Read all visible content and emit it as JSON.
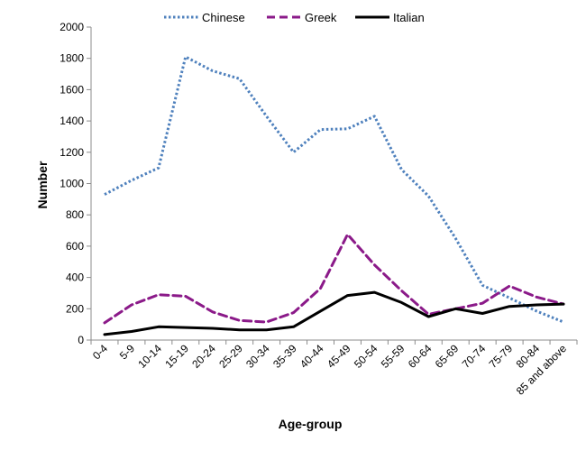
{
  "chart_data": {
    "type": "line",
    "xlabel": "Age-group",
    "ylabel": "Number",
    "ylim": [
      0,
      2000
    ],
    "yticks": [
      0,
      200,
      400,
      600,
      800,
      1000,
      1200,
      1400,
      1600,
      1800,
      2000
    ],
    "grid": false,
    "legend_position": "top",
    "categories": [
      "0-4",
      "5-9",
      "10-14",
      "15-19",
      "20-24",
      "25-29",
      "30-34",
      "35-39",
      "40-44",
      "45-49",
      "50-54",
      "55-59",
      "60-64",
      "65-69",
      "70-74",
      "75-79",
      "80-84",
      "85 and above"
    ],
    "series": [
      {
        "name": "Chinese",
        "color": "#4f81bd",
        "style": "dotted",
        "values": [
          930,
          1020,
          1100,
          1810,
          1720,
          1670,
          1430,
          1200,
          1345,
          1350,
          1430,
          1090,
          920,
          650,
          350,
          270,
          185,
          115
        ]
      },
      {
        "name": "Greek",
        "color": "#8b1a89",
        "style": "dashed",
        "values": [
          110,
          225,
          290,
          280,
          180,
          125,
          115,
          175,
          330,
          675,
          480,
          315,
          165,
          200,
          235,
          345,
          275,
          230
        ]
      },
      {
        "name": "Italian",
        "color": "#000000",
        "style": "solid",
        "values": [
          35,
          55,
          85,
          80,
          75,
          65,
          65,
          85,
          185,
          285,
          305,
          240,
          150,
          200,
          170,
          215,
          225,
          230
        ]
      }
    ]
  }
}
